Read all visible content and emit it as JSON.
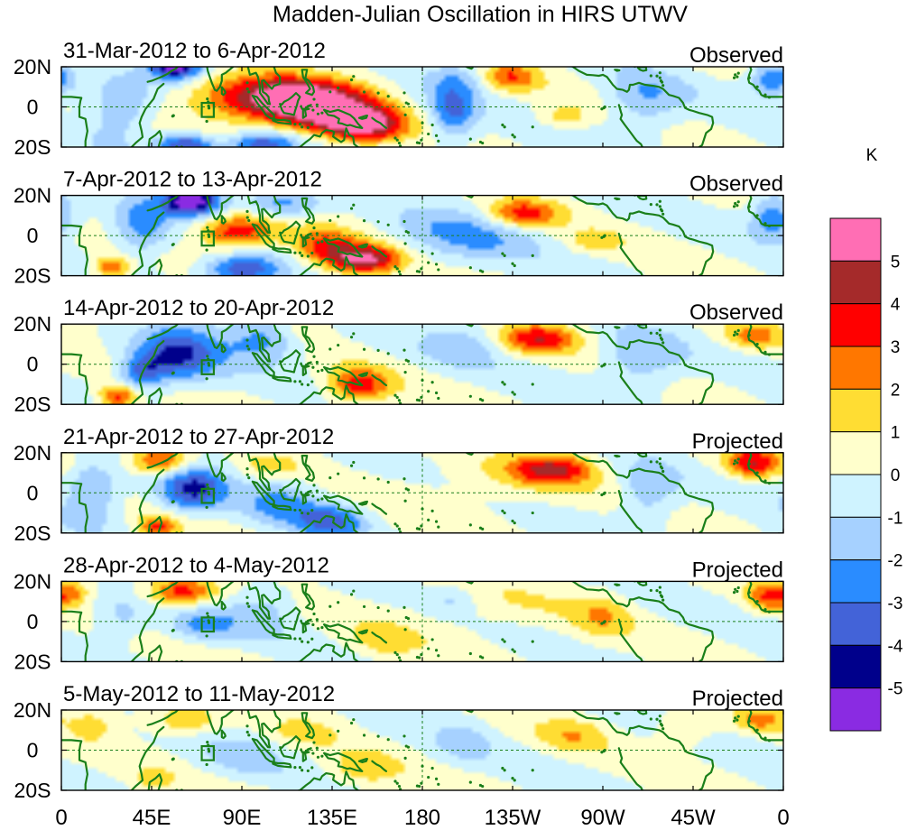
{
  "figure": {
    "title": "Madden-Julian Oscillation in HIRS UTWV"
  },
  "chart_data": {
    "type": "heatmap",
    "title": "Madden-Julian Oscillation in HIRS UTWV",
    "xlabel": "",
    "ylabel": "",
    "x_ticks": [
      "0",
      "45E",
      "90E",
      "135E",
      "180",
      "135W",
      "90W",
      "45W",
      "0"
    ],
    "x_range_deg": [
      0,
      360
    ],
    "y_ticks": [
      "20N",
      "0",
      "20S"
    ],
    "y_range_deg": [
      -20,
      20
    ],
    "units": "K",
    "colorbar": {
      "label": "K",
      "ticks": [
        "5",
        "4",
        "3",
        "2",
        "1",
        "0",
        "-1",
        "-2",
        "-3",
        "-4",
        "-5"
      ],
      "levels": [
        6,
        5,
        4,
        3,
        2,
        1,
        0,
        -1,
        -2,
        -3,
        -4,
        -5,
        -6
      ],
      "colors": [
        "#ff6eb4",
        "#a52a2a",
        "#ff0000",
        "#ff7700",
        "#ffdd33",
        "#ffffcc",
        "#cff3ff",
        "#a6d1ff",
        "#2a8cff",
        "#4363d8",
        "#00008b",
        "#8a2be2"
      ]
    },
    "panels": [
      {
        "period": "31-Mar-2012 to 6-Apr-2012",
        "label": "Observed",
        "anomalies": [
          {
            "lon": 110,
            "lat": 4,
            "amp": 6.0,
            "sx": 28,
            "sy": 8
          },
          {
            "lon": 150,
            "lat": -9,
            "amp": 5.5,
            "sx": 14,
            "sy": 6
          },
          {
            "lon": 128,
            "lat": -2,
            "amp": 3.5,
            "sx": 16,
            "sy": 7
          },
          {
            "lon": 57,
            "lat": 21,
            "amp": -6.0,
            "sx": 9,
            "sy": 5
          },
          {
            "lon": 62,
            "lat": -19,
            "amp": -4.5,
            "sx": 10,
            "sy": 4
          },
          {
            "lon": 100,
            "lat": -19,
            "amp": -4.0,
            "sx": 12,
            "sy": 4
          },
          {
            "lon": 30,
            "lat": 0,
            "amp": -2.2,
            "sx": 12,
            "sy": 12
          },
          {
            "lon": 195,
            "lat": -3,
            "amp": -3.0,
            "sx": 8,
            "sy": 10
          },
          {
            "lon": 223,
            "lat": 15,
            "amp": 3.0,
            "sx": 10,
            "sy": 5
          },
          {
            "lon": 290,
            "lat": 3,
            "amp": -2.0,
            "sx": 14,
            "sy": 10
          },
          {
            "lon": 355,
            "lat": 14,
            "amp": -3.5,
            "sx": 8,
            "sy": 6
          },
          {
            "lon": 250,
            "lat": -5,
            "amp": 1.5,
            "sx": 10,
            "sy": 4
          },
          {
            "lon": 200,
            "lat": 14,
            "amp": -1.5,
            "sx": 14,
            "sy": 6
          }
        ]
      },
      {
        "period": "7-Apr-2012 to 13-Apr-2012",
        "label": "Observed",
        "anomalies": [
          {
            "lon": 88,
            "lat": 2,
            "amp": 4.0,
            "sx": 14,
            "sy": 6
          },
          {
            "lon": 150,
            "lat": -12,
            "amp": 5.5,
            "sx": 13,
            "sy": 5
          },
          {
            "lon": 130,
            "lat": -5,
            "amp": 3.0,
            "sx": 12,
            "sy": 6
          },
          {
            "lon": 230,
            "lat": 11,
            "amp": 3.5,
            "sx": 13,
            "sy": 5
          },
          {
            "lon": 65,
            "lat": 17,
            "amp": -6.0,
            "sx": 10,
            "sy": 5
          },
          {
            "lon": 90,
            "lat": -17,
            "amp": -4.0,
            "sx": 14,
            "sy": 5
          },
          {
            "lon": 25,
            "lat": -16,
            "amp": 3.0,
            "sx": 7,
            "sy": 4
          },
          {
            "lon": 40,
            "lat": 5,
            "amp": -2.5,
            "sx": 10,
            "sy": 12
          },
          {
            "lon": 110,
            "lat": 16,
            "amp": -2.5,
            "sx": 14,
            "sy": 5
          },
          {
            "lon": 200,
            "lat": 0,
            "amp": -2.0,
            "sx": 25,
            "sy": 10
          },
          {
            "lon": 355,
            "lat": 10,
            "amp": -3.0,
            "sx": 8,
            "sy": 8
          },
          {
            "lon": 265,
            "lat": -3,
            "amp": 1.2,
            "sx": 10,
            "sy": 4
          }
        ]
      },
      {
        "period": "14-Apr-2012 to 20-Apr-2012",
        "label": "Observed",
        "anomalies": [
          {
            "lon": 148,
            "lat": -11,
            "amp": 3.5,
            "sx": 11,
            "sy": 6
          },
          {
            "lon": 28,
            "lat": -16,
            "amp": 3.5,
            "sx": 7,
            "sy": 4
          },
          {
            "lon": 238,
            "lat": 13,
            "amp": 3.5,
            "sx": 14,
            "sy": 5
          },
          {
            "lon": 345,
            "lat": 14,
            "amp": 2.0,
            "sx": 10,
            "sy": 5
          },
          {
            "lon": 58,
            "lat": 5,
            "amp": -4.0,
            "sx": 14,
            "sy": 10
          },
          {
            "lon": 100,
            "lat": 12,
            "amp": -2.5,
            "sx": 14,
            "sy": 8
          },
          {
            "lon": 40,
            "lat": -4,
            "amp": -3.0,
            "sx": 8,
            "sy": 6
          },
          {
            "lon": 288,
            "lat": 2,
            "amp": -2.0,
            "sx": 14,
            "sy": 10
          },
          {
            "lon": 120,
            "lat": 17,
            "amp": 1.2,
            "sx": 8,
            "sy": 4
          },
          {
            "lon": 200,
            "lat": 10,
            "amp": -1.5,
            "sx": 14,
            "sy": 8
          }
        ]
      },
      {
        "period": "21-Apr-2012 to 27-Apr-2012",
        "label": "Projected",
        "anomalies": [
          {
            "lon": 50,
            "lat": 16,
            "amp": 3.5,
            "sx": 10,
            "sy": 5
          },
          {
            "lon": 245,
            "lat": 12,
            "amp": 3.5,
            "sx": 14,
            "sy": 5
          },
          {
            "lon": 345,
            "lat": 15,
            "amp": 3.5,
            "sx": 10,
            "sy": 5
          },
          {
            "lon": 48,
            "lat": -17,
            "amp": 3.0,
            "sx": 7,
            "sy": 4
          },
          {
            "lon": 65,
            "lat": 2,
            "amp": -4.0,
            "sx": 12,
            "sy": 8
          },
          {
            "lon": 15,
            "lat": 0,
            "amp": -2.5,
            "sx": 10,
            "sy": 10
          },
          {
            "lon": 135,
            "lat": -14,
            "amp": -3.0,
            "sx": 12,
            "sy": 6
          },
          {
            "lon": 110,
            "lat": -5,
            "amp": -2.0,
            "sx": 14,
            "sy": 8
          },
          {
            "lon": 105,
            "lat": 14,
            "amp": 1.5,
            "sx": 10,
            "sy": 4
          },
          {
            "lon": 220,
            "lat": 5,
            "amp": 1.0,
            "sx": 30,
            "sy": 10
          },
          {
            "lon": 292,
            "lat": 0,
            "amp": -2.0,
            "sx": 10,
            "sy": 10
          }
        ]
      },
      {
        "period": "28-Apr-2012 to 4-May-2012",
        "label": "Projected",
        "anomalies": [
          {
            "lon": 60,
            "lat": 15,
            "amp": 3.5,
            "sx": 12,
            "sy": 5
          },
          {
            "lon": 352,
            "lat": 12,
            "amp": 2.5,
            "sx": 8,
            "sy": 5
          },
          {
            "lon": 5,
            "lat": 14,
            "amp": 2.0,
            "sx": 6,
            "sy": 4
          },
          {
            "lon": 270,
            "lat": 3,
            "amp": 1.5,
            "sx": 10,
            "sy": 8
          },
          {
            "lon": 70,
            "lat": -2,
            "amp": -2.0,
            "sx": 12,
            "sy": 6
          },
          {
            "lon": 100,
            "lat": 5,
            "amp": -1.5,
            "sx": 12,
            "sy": 8
          },
          {
            "lon": 30,
            "lat": 2,
            "amp": -1.5,
            "sx": 10,
            "sy": 8
          },
          {
            "lon": 160,
            "lat": -10,
            "amp": 1.2,
            "sx": 12,
            "sy": 6
          },
          {
            "lon": 210,
            "lat": 6,
            "amp": 0.8,
            "sx": 30,
            "sy": 10
          },
          {
            "lon": 195,
            "lat": 10,
            "amp": -1.2,
            "sx": 8,
            "sy": 5
          }
        ]
      },
      {
        "period": "5-May-2012 to 11-May-2012",
        "label": "Projected",
        "anomalies": [
          {
            "lon": 62,
            "lat": 15,
            "amp": 2.0,
            "sx": 12,
            "sy": 5
          },
          {
            "lon": 15,
            "lat": 12,
            "amp": 1.5,
            "sx": 8,
            "sy": 5
          },
          {
            "lon": 255,
            "lat": 8,
            "amp": 1.5,
            "sx": 12,
            "sy": 6
          },
          {
            "lon": 310,
            "lat": 10,
            "amp": 1.5,
            "sx": 10,
            "sy": 6
          },
          {
            "lon": 348,
            "lat": 15,
            "amp": 2.0,
            "sx": 8,
            "sy": 4
          },
          {
            "lon": 90,
            "lat": -2,
            "amp": -1.2,
            "sx": 15,
            "sy": 8
          },
          {
            "lon": 150,
            "lat": -10,
            "amp": 1.5,
            "sx": 12,
            "sy": 6
          },
          {
            "lon": 200,
            "lat": 5,
            "amp": -1.1,
            "sx": 10,
            "sy": 8
          },
          {
            "lon": 120,
            "lat": 10,
            "amp": 1.0,
            "sx": 15,
            "sy": 6
          },
          {
            "lon": 45,
            "lat": -15,
            "amp": 1.0,
            "sx": 8,
            "sy": 4
          }
        ]
      }
    ]
  }
}
